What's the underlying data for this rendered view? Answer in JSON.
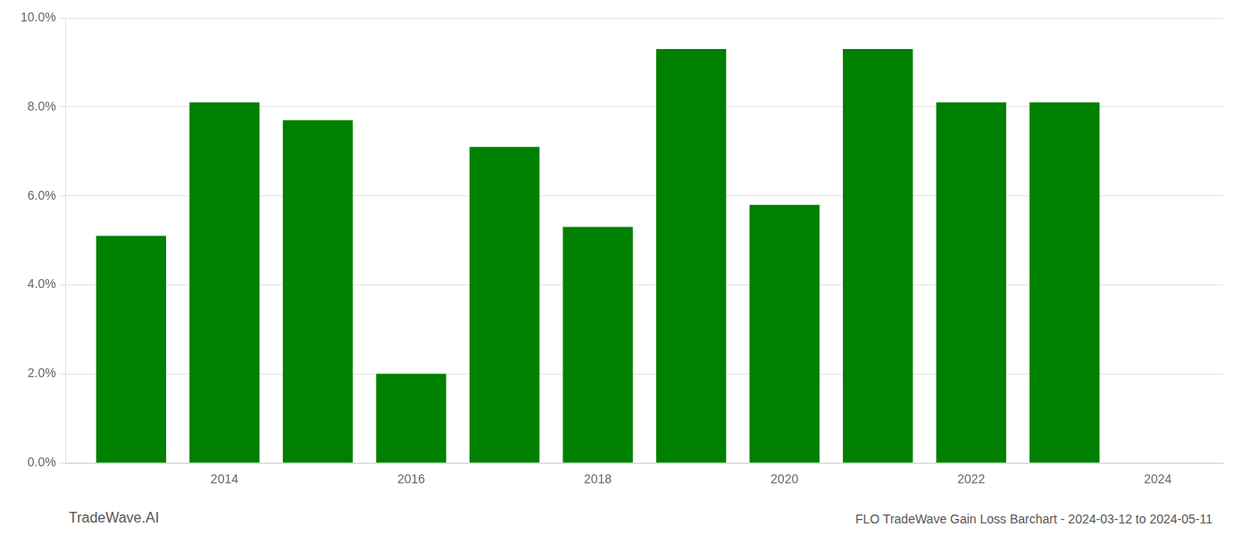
{
  "chart_data": {
    "type": "bar",
    "x": [
      2013,
      2014,
      2015,
      2016,
      2017,
      2018,
      2019,
      2020,
      2021,
      2022,
      2023
    ],
    "values": [
      0.051,
      0.081,
      0.077,
      0.02,
      0.071,
      0.053,
      0.093,
      0.058,
      0.093,
      0.081,
      0.081
    ],
    "color": "#008000",
    "xlim": [
      2012.3,
      2024.7
    ],
    "xticks": [
      2014,
      2016,
      2018,
      2020,
      2022,
      2024
    ],
    "ylim": [
      0,
      0.1
    ],
    "yticks": [
      {
        "value": 0.0,
        "label": "0.0%"
      },
      {
        "value": 0.02,
        "label": "2.0%"
      },
      {
        "value": 0.04,
        "label": "4.0%"
      },
      {
        "value": 0.06,
        "label": "6.0%"
      },
      {
        "value": 0.08,
        "label": "8.0%"
      },
      {
        "value": 0.1,
        "label": "10.0%"
      }
    ],
    "grid": "y",
    "annotations": [
      "TradeWave.AI",
      "FLO TradeWave Gain Loss Barchart - 2024-03-12 to 2024-05-11"
    ]
  }
}
